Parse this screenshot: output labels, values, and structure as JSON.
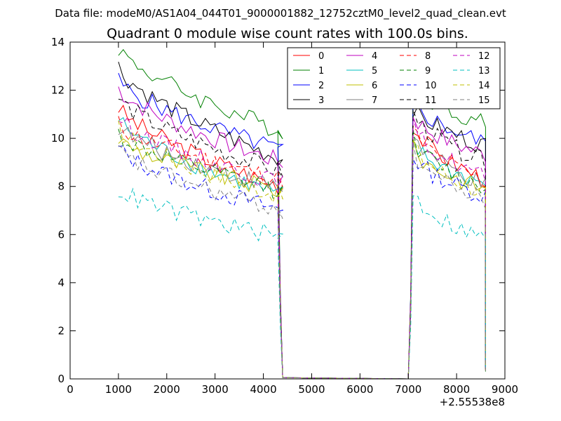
{
  "chart_data": {
    "type": "line",
    "suptitle": "Data file: modeM0/AS1A04_044T01_9000001882_12752cztM0_level2_quad_clean.evt",
    "title": "Quadrant 0 module wise count rates with 100.0s bins.",
    "xlabel": "",
    "ylabel": "",
    "x_offset_label": "+2.55538e8",
    "xlim": [
      0,
      9000
    ],
    "ylim": [
      0,
      14
    ],
    "xticks": [
      0,
      1000,
      2000,
      3000,
      4000,
      5000,
      6000,
      7000,
      8000,
      9000
    ],
    "yticks": [
      0,
      2,
      4,
      6,
      8,
      10,
      12,
      14
    ],
    "legend_position": "top-right",
    "legend_columns": 4,
    "segments": {
      "first": {
        "x_start": 1000,
        "x_step": 100,
        "points": 35
      },
      "second": {
        "x_start": 7100,
        "x_step": 100,
        "points": 16
      }
    },
    "gap_trace": {
      "x": [
        4400,
        7000
      ],
      "y": [
        0,
        0
      ]
    },
    "series": [
      {
        "name": "0",
        "color": "#ff0000",
        "dash": "solid",
        "start": 11.3,
        "end": 8.0,
        "drop_start": 3.2,
        "peak": 10.6,
        "end2": 8.3
      },
      {
        "name": "1",
        "color": "#008000",
        "dash": "solid",
        "start": 13.8,
        "end": 10.3,
        "drop_start": 3.6,
        "peak": 12.4,
        "end2": 10.6
      },
      {
        "name": "2",
        "color": "#0000ff",
        "dash": "solid",
        "start": 12.4,
        "end": 9.5,
        "drop_start": 3.5,
        "peak": 11.6,
        "end2": 9.8
      },
      {
        "name": "3",
        "color": "#000000",
        "dash": "solid",
        "start": 13.0,
        "end": 9.1,
        "drop_start": 3.4,
        "peak": 11.3,
        "end2": 9.7
      },
      {
        "name": "4",
        "color": "#bf00bf",
        "dash": "solid",
        "start": 12.1,
        "end": 9.0,
        "drop_start": 3.4,
        "peak": 11.0,
        "end2": 9.3
      },
      {
        "name": "5",
        "color": "#00bfbf",
        "dash": "solid",
        "start": 10.8,
        "end": 7.6,
        "drop_start": 3.0,
        "peak": 9.8,
        "end2": 8.1
      },
      {
        "name": "6",
        "color": "#bfbf00",
        "dash": "solid",
        "start": 10.0,
        "end": 7.8,
        "drop_start": 2.9,
        "peak": 9.6,
        "end2": 7.9
      },
      {
        "name": "7",
        "color": "#808080",
        "dash": "solid",
        "start": 10.5,
        "end": 7.9,
        "drop_start": 3.0,
        "peak": 10.2,
        "end2": 8.0
      },
      {
        "name": "8",
        "color": "#ff0000",
        "dash": "dashed",
        "start": 10.6,
        "end": 8.3,
        "drop_start": 3.1,
        "peak": 10.4,
        "end2": 8.2
      },
      {
        "name": "9",
        "color": "#008000",
        "dash": "dashed",
        "start": 10.2,
        "end": 7.8,
        "drop_start": 3.0,
        "peak": 10.0,
        "end2": 7.9
      },
      {
        "name": "10",
        "color": "#0000ff",
        "dash": "dashed",
        "start": 9.6,
        "end": 7.0,
        "drop_start": 2.8,
        "peak": 9.3,
        "end2": 7.6
      },
      {
        "name": "11",
        "color": "#000000",
        "dash": "dashed",
        "start": 11.7,
        "end": 8.6,
        "drop_start": 3.2,
        "peak": 11.1,
        "end2": 9.0
      },
      {
        "name": "12",
        "color": "#bf00bf",
        "dash": "dashed",
        "start": 10.9,
        "end": 8.1,
        "drop_start": 3.1,
        "peak": 10.5,
        "end2": 8.4
      },
      {
        "name": "13",
        "color": "#00bfbf",
        "dash": "dashed",
        "start": 7.9,
        "end": 5.9,
        "drop_start": 2.2,
        "peak": 7.8,
        "end2": 5.8
      },
      {
        "name": "14",
        "color": "#bfbf00",
        "dash": "dashed",
        "start": 10.4,
        "end": 7.6,
        "drop_start": 3.0,
        "peak": 9.8,
        "end2": 7.7
      },
      {
        "name": "15",
        "color": "#808080",
        "dash": "dashed",
        "start": 9.5,
        "end": 7.0,
        "drop_start": 2.8,
        "peak": 9.5,
        "end2": 7.4
      }
    ]
  }
}
